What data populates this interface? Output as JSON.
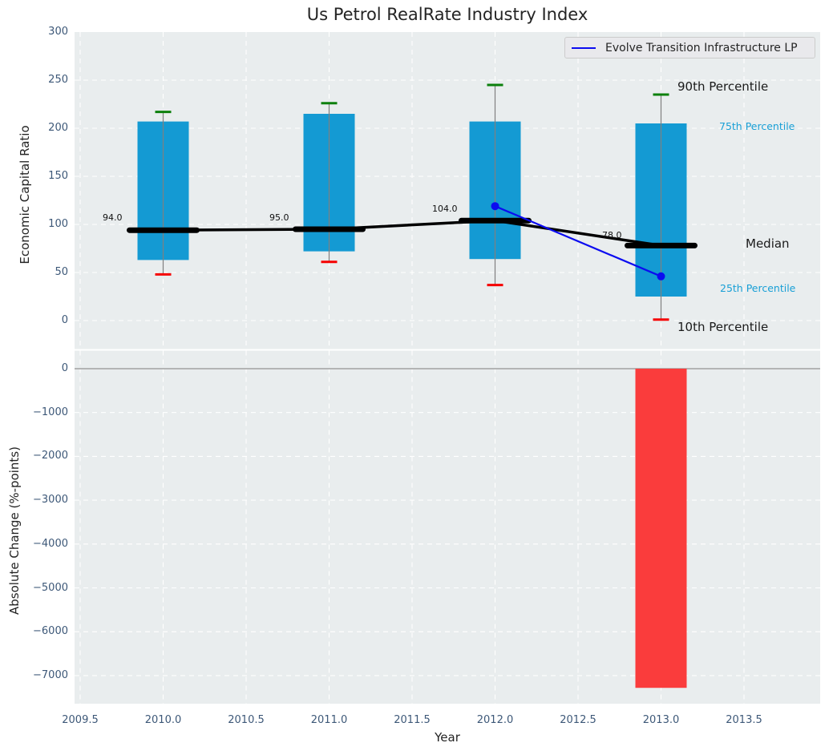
{
  "title": "Us Petrol RealRate Industry Index",
  "legend": {
    "label": "Evolve Transition Infrastructure LP"
  },
  "axes": {
    "xlabel": "Year",
    "top_ylabel": "Economic Capital Ratio",
    "bottom_ylabel": "Absolute Change (%-points)",
    "x_ticks": [
      {
        "v": 2009.5,
        "label": "2009.5"
      },
      {
        "v": 2010.0,
        "label": "2010.0"
      },
      {
        "v": 2010.5,
        "label": "2010.5"
      },
      {
        "v": 2011.0,
        "label": "2011.0"
      },
      {
        "v": 2011.5,
        "label": "2011.5"
      },
      {
        "v": 2012.0,
        "label": "2012.0"
      },
      {
        "v": 2012.5,
        "label": "2012.5"
      },
      {
        "v": 2013.0,
        "label": "2013.0"
      },
      {
        "v": 2013.5,
        "label": "2013.5"
      }
    ],
    "top_y_ticks": [
      {
        "v": 300,
        "label": "300"
      },
      {
        "v": 250,
        "label": "250"
      },
      {
        "v": 200,
        "label": "200"
      },
      {
        "v": 150,
        "label": "150"
      },
      {
        "v": 100,
        "label": "100"
      },
      {
        "v": 50,
        "label": "50"
      },
      {
        "v": 0,
        "label": "0"
      }
    ],
    "bottom_y_ticks": [
      {
        "v": 0,
        "label": "0"
      },
      {
        "v": -1000,
        "label": "−1000"
      },
      {
        "v": -2000,
        "label": "−2000"
      },
      {
        "v": -3000,
        "label": "−3000"
      },
      {
        "v": -4000,
        "label": "−4000"
      },
      {
        "v": -5000,
        "label": "−5000"
      },
      {
        "v": -6000,
        "label": "−6000"
      },
      {
        "v": -7000,
        "label": "−7000"
      }
    ]
  },
  "annotations": {
    "p90": "90th Percentile",
    "p75": "75th Percentile",
    "median": "Median",
    "p25": "25th Percentile",
    "p10": "10th Percentile"
  },
  "colors": {
    "bar": "#149ad3",
    "negative_bar": "#fa3c3c",
    "whisker": "#808080",
    "whisker_cap_high": "#0c800c",
    "whisker_cap_low": "#f50000",
    "median_line": "#000000",
    "company_line": "#0b0bf0",
    "plot_bg": "#e9edee",
    "grid": "#ffffff",
    "zero_line": "#ababab",
    "tick_text": "#3d5878",
    "percentile_label": "#189fd6",
    "dark_text": "#242424"
  },
  "chart_data": [
    {
      "type": "box-timeseries",
      "title": "Us Petrol RealRate Industry Index",
      "xlabel": "Year",
      "ylabel": "Economic Capital Ratio",
      "x": [
        2010,
        2011,
        2012,
        2013
      ],
      "series": {
        "p90": [
          217,
          226,
          245,
          235
        ],
        "p75": [
          207,
          215,
          207,
          205
        ],
        "median": [
          94,
          95,
          104,
          78
        ],
        "p25": [
          63,
          72,
          64,
          25
        ],
        "p10": [
          48,
          61,
          37,
          1
        ]
      },
      "median_labels": [
        "94.0",
        "95.0",
        "104.0",
        "78.0"
      ],
      "overlay_line": {
        "name": "Evolve Transition Infrastructure LP",
        "x": [
          2012,
          2013
        ],
        "y": [
          119,
          46
        ]
      },
      "ylim": [
        -29,
        300
      ],
      "xlim": [
        2009.47,
        2013.96
      ],
      "grid": true,
      "legend_position": "upper right"
    },
    {
      "type": "bar",
      "ylabel": "Absolute Change (%-points)",
      "xlabel": "Year",
      "x": [
        2013
      ],
      "values": [
        -7280
      ],
      "ylim": [
        -7640,
        220
      ],
      "grid": true
    }
  ]
}
